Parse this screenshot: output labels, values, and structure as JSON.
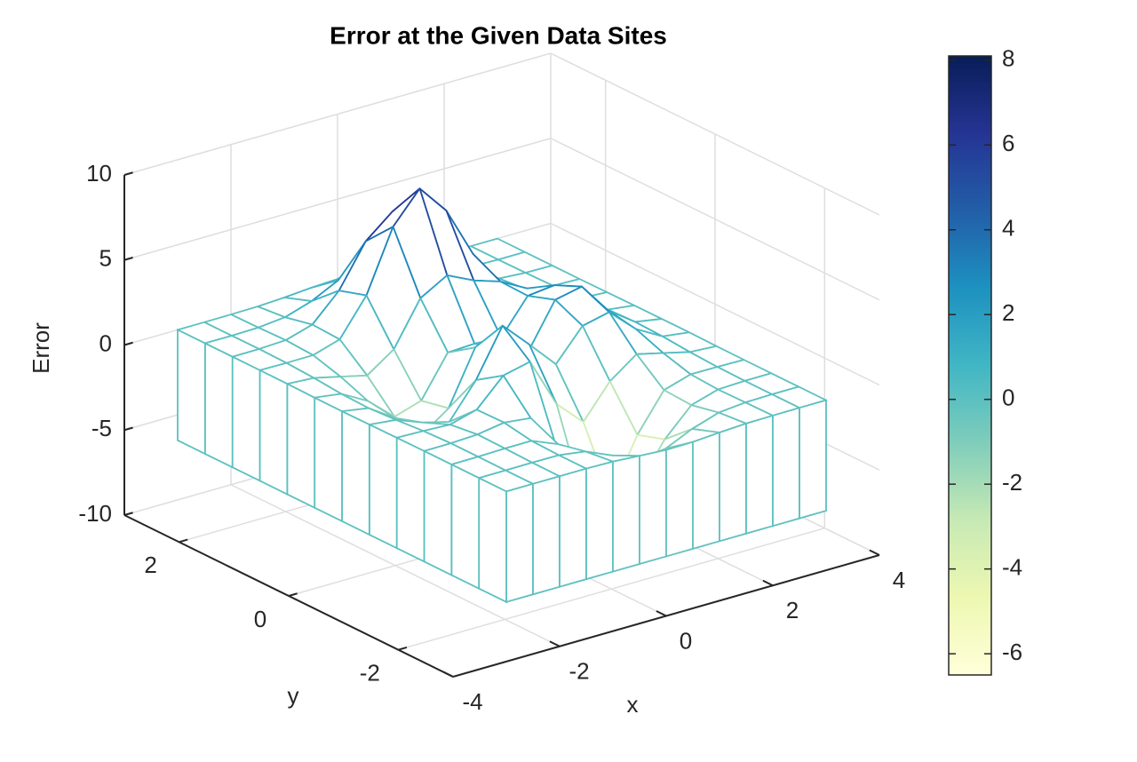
{
  "chart_data": {
    "type": "mesh",
    "title": "Error at the Given Data Sites",
    "xlabel": "x",
    "ylabel": "y",
    "zlabel": "Error",
    "x": [
      -3,
      -2.5,
      -2,
      -1.5,
      -1,
      -0.5,
      0,
      0.5,
      1,
      1.5,
      2,
      2.5,
      3
    ],
    "y": [
      -3,
      -2.5,
      -2,
      -1.5,
      -1,
      -0.5,
      0,
      0.5,
      1,
      1.5,
      2,
      2.5,
      3
    ],
    "z": [
      [
        0,
        0,
        0,
        0,
        -0.03,
        -0.14,
        -0.24,
        -0.22,
        -0.11,
        -0.03,
        -0.01,
        0,
        0
      ],
      [
        0,
        0,
        0.01,
        0,
        -0.23,
        -0.91,
        -1.57,
        -1.41,
        -0.69,
        -0.18,
        -0.03,
        0,
        0
      ],
      [
        0,
        0.01,
        0.05,
        0.05,
        -0.59,
        -2.63,
        -4.75,
        -4.34,
        -2.1,
        -0.53,
        -0.06,
        0,
        0
      ],
      [
        0,
        0.01,
        0.08,
        0.33,
        0.15,
        -2.19,
        -5.68,
        -5.76,
        -2.63,
        -0.44,
        0.04,
        0.03,
        0
      ],
      [
        -0.01,
        -0.06,
        -0.13,
        0.3,
        1.86,
        2.22,
        -0.72,
        -2.22,
        -0.27,
        0.88,
        0.5,
        0.11,
        0.01
      ],
      [
        -0.03,
        -0.2,
        -0.8,
        -1.21,
        0.8,
        3.55,
        2,
        0.39,
        2.2,
        2.56,
        1.12,
        0.24,
        0.03
      ],
      [
        -0.04,
        -0.3,
        -1.33,
        -2.77,
        -1.65,
        1.48,
        0.98,
        0.37,
        2.94,
        3.27,
        1.41,
        0.3,
        0.03
      ],
      [
        -0.03,
        -0.25,
        -1.12,
        -2.49,
        -2,
        0.39,
        0.46,
        0.38,
        2.38,
        2.56,
        1.09,
        0.23,
        0.03
      ],
      [
        -0.01,
        -0.11,
        -0.48,
        -0.86,
        0.23,
        2.79,
        3.69,
        2.94,
        2.43,
        1.58,
        0.58,
        0.11,
        0.01
      ],
      [
        0,
        -0.02,
        -0.01,
        0.47,
        2.61,
        6.2,
        8,
        6.25,
        3.26,
        1.19,
        0.29,
        0.05,
        0
      ],
      [
        0,
        0.01,
        0.08,
        0.55,
        2.1,
        4.55,
        5.85,
        4.56,
        2.21,
        0.68,
        0.13,
        0.02,
        0
      ],
      [
        0,
        0,
        0.03,
        0.19,
        0.69,
        1.47,
        1.89,
        1.47,
        0.7,
        0.21,
        0.04,
        0,
        0
      ],
      [
        0,
        0,
        0.01,
        0.03,
        0.11,
        0.23,
        0.3,
        0.23,
        0.11,
        0.03,
        0.01,
        0,
        0
      ]
    ],
    "xlim": [
      -4,
      4
    ],
    "ylim": [
      -3,
      3
    ],
    "zlim": [
      -10,
      10
    ],
    "xticks": [
      -4,
      -2,
      0,
      2,
      4
    ],
    "yticks": [
      -2,
      0,
      2
    ],
    "zticks": [
      -10,
      -5,
      0,
      5,
      10
    ],
    "grid": true,
    "colormap": [
      "#ffffd9",
      "#edf8b1",
      "#c7e9b4",
      "#7fcdbb",
      "#41b6c4",
      "#1d91c0",
      "#225ea8",
      "#253494",
      "#081d58"
    ],
    "colorbar": {
      "clim": [
        -6.5,
        8.1
      ],
      "ticks": [
        -6,
        -4,
        -2,
        0,
        2,
        4,
        6,
        8
      ]
    }
  }
}
